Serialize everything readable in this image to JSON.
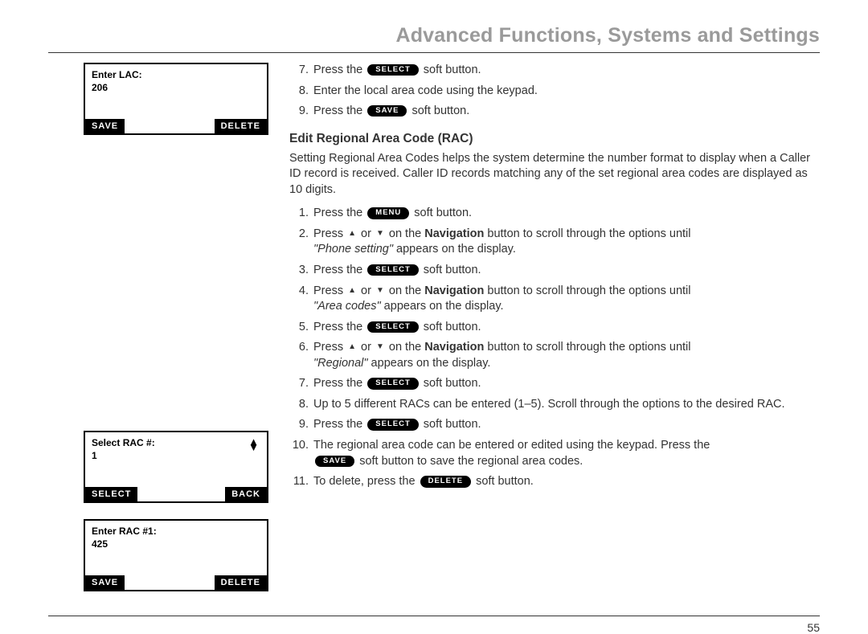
{
  "header": {
    "title": "Advanced Functions, Systems and Settings"
  },
  "buttons": {
    "select": "SELECT",
    "save": "SAVE",
    "menu": "MENU",
    "delete": "DELETE",
    "back": "BACK"
  },
  "screens": {
    "lac": {
      "line1": "Enter LAC:",
      "line2": "206",
      "left_softkey": "SAVE",
      "right_softkey": "DELETE"
    },
    "rac_select": {
      "line1": "Select RAC #:",
      "line2": "1",
      "left_softkey": "SELECT",
      "right_softkey": "BACK",
      "show_updown": true
    },
    "rac_enter": {
      "line1": "Enter RAC #1:",
      "line2": "425",
      "left_softkey": "SAVE",
      "right_softkey": "DELETE"
    }
  },
  "top_steps": {
    "s7a": "Press the ",
    "s7b": " soft button.",
    "s8": "Enter the local area code using the keypad.",
    "s9a": "Press the ",
    "s9b": " soft button."
  },
  "section": {
    "heading": "Edit Regional Area Code (RAC)",
    "intro": "Setting Regional Area Codes helps the system determine the number format to display when a Caller ID record is received. Caller ID records matching any of the set regional area codes are displayed as 10 digits."
  },
  "rac_steps": {
    "s1a": "Press the ",
    "s1b": " soft button.",
    "s2a": "Press ",
    "s2b": " or ",
    "s2c": " on the ",
    "s2nav": "Navigation",
    "s2d": " button to scroll through the options until ",
    "s2e": "\"Phone setting\"",
    "s2f": " appears on the display.",
    "s3a": "Press the ",
    "s3b": " soft button.",
    "s4a": "Press ",
    "s4b": " or ",
    "s4c": " on the ",
    "s4nav": "Navigation",
    "s4d": " button to scroll through the options until ",
    "s4e": "\"Area codes\"",
    "s4f": " appears on the display.",
    "s5a": "Press the ",
    "s5b": " soft button.",
    "s6a": "Press ",
    "s6b": " or ",
    "s6c": " on the ",
    "s6nav": "Navigation",
    "s6d": " button to scroll through the options until ",
    "s6e": "\"Regional\"",
    "s6f": " appears on the display.",
    "s7a": "Press the ",
    "s7b": " soft button.",
    "s8": "Up to 5 different RACs can be entered (1–5). Scroll through the options to the desired RAC.",
    "s9a": "Press the ",
    "s9b": " soft button.",
    "s10a": "The regional area code can be entered or edited using the keypad.  Press the ",
    "s10b": " soft button to save the regional area codes.",
    "s11a": "To delete, press the ",
    "s11b": " soft button."
  },
  "page_number": "55",
  "colors": {
    "header_text": "#9a9a9a",
    "body_text": "#333333",
    "rule": "#333333",
    "pill_bg": "#000000",
    "pill_fg": "#ffffff",
    "screen_border": "#000000",
    "background": "#ffffff"
  },
  "typography": {
    "header_fontsize_pt": 19,
    "body_fontsize_pt": 11,
    "screen_fontsize_pt": 9,
    "pill_fontsize_pt": 7,
    "font_family": "Helvetica / Arial"
  }
}
